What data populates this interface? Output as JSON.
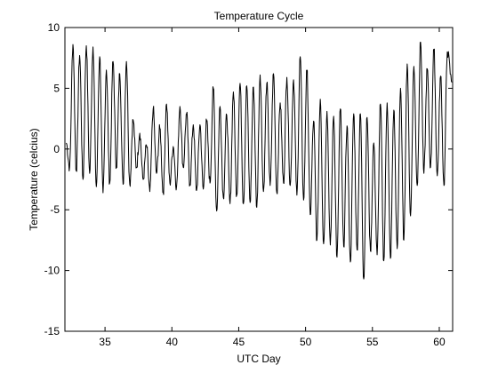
{
  "chart_data": {
    "type": "line",
    "title": "Temperature Cycle",
    "xlabel": "UTC Day",
    "ylabel": "Temperature (celcius)",
    "xlim": [
      32,
      61
    ],
    "ylim": [
      -15,
      10
    ],
    "xticks": [
      35,
      40,
      45,
      50,
      55,
      60
    ],
    "yticks": [
      10,
      5,
      0,
      -5,
      -10,
      -15
    ],
    "grid": false,
    "series": [
      {
        "color": "#000000",
        "cycle_peaks": [
          [
            32.1,
            0.5
          ],
          [
            32.6,
            8.6
          ],
          [
            33.1,
            7.7
          ],
          [
            33.6,
            8.5
          ],
          [
            34.1,
            8.4
          ],
          [
            34.6,
            7.6
          ],
          [
            35.1,
            6.5
          ],
          [
            35.6,
            7.2
          ],
          [
            36.1,
            6.2
          ],
          [
            36.6,
            7.2
          ],
          [
            37.1,
            2.4
          ],
          [
            37.6,
            1.3
          ],
          [
            38.1,
            0.3
          ],
          [
            38.6,
            3.3
          ],
          [
            39.1,
            1.7
          ],
          [
            39.6,
            3.7
          ],
          [
            40.1,
            0.2
          ],
          [
            40.6,
            3.5
          ],
          [
            41.1,
            2.9
          ],
          [
            41.6,
            2.0
          ],
          [
            42.1,
            2.0
          ],
          [
            42.6,
            2.3
          ],
          [
            43.1,
            5.0
          ],
          [
            43.6,
            3.5
          ],
          [
            44.1,
            2.8
          ],
          [
            44.6,
            4.7
          ],
          [
            45.1,
            5.4
          ],
          [
            45.6,
            5.2
          ],
          [
            46.1,
            5.1
          ],
          [
            46.6,
            6.1
          ],
          [
            47.1,
            5.4
          ],
          [
            47.6,
            6.2
          ],
          [
            48.1,
            3.8
          ],
          [
            48.6,
            5.9
          ],
          [
            49.1,
            5.7
          ],
          [
            49.6,
            7.6
          ],
          [
            50.1,
            6.5
          ],
          [
            50.6,
            2.3
          ],
          [
            51.1,
            4.1
          ],
          [
            51.6,
            3.1
          ],
          [
            52.1,
            2.7
          ],
          [
            52.6,
            3.3
          ],
          [
            53.1,
            1.9
          ],
          [
            53.6,
            2.9
          ],
          [
            54.1,
            2.9
          ],
          [
            54.6,
            2.6
          ],
          [
            55.1,
            0.5
          ],
          [
            55.6,
            3.7
          ],
          [
            56.1,
            3.8
          ],
          [
            56.6,
            3.2
          ],
          [
            57.1,
            5.0
          ],
          [
            57.6,
            7.0
          ],
          [
            58.1,
            6.8
          ],
          [
            58.6,
            8.8
          ],
          [
            59.1,
            6.6
          ],
          [
            59.6,
            8.2
          ],
          [
            60.1,
            6.0
          ],
          [
            60.6,
            8.0
          ]
        ],
        "cycle_troughs": [
          [
            32.35,
            -1.5
          ],
          [
            32.85,
            -1.8
          ],
          [
            33.35,
            -2.5
          ],
          [
            33.85,
            -2.0
          ],
          [
            34.35,
            -3.1
          ],
          [
            34.85,
            -3.6
          ],
          [
            35.35,
            -2.8
          ],
          [
            35.85,
            -1.5
          ],
          [
            36.35,
            -2.9
          ],
          [
            36.85,
            -2.9
          ],
          [
            37.35,
            -1.5
          ],
          [
            37.85,
            -2.5
          ],
          [
            38.35,
            -3.5
          ],
          [
            38.85,
            -2.0
          ],
          [
            39.35,
            -3.6
          ],
          [
            39.85,
            -2.8
          ],
          [
            40.35,
            -3.1
          ],
          [
            40.85,
            -1.5
          ],
          [
            41.35,
            -2.9
          ],
          [
            41.85,
            -3.4
          ],
          [
            42.35,
            -3.3
          ],
          [
            42.85,
            -2.8
          ],
          [
            43.35,
            -5.1
          ],
          [
            43.85,
            -4.0
          ],
          [
            44.35,
            -4.5
          ],
          [
            44.85,
            -3.8
          ],
          [
            45.35,
            -4.5
          ],
          [
            45.85,
            -4.4
          ],
          [
            46.35,
            -4.8
          ],
          [
            46.85,
            -3.5
          ],
          [
            47.35,
            -3.0
          ],
          [
            47.85,
            -3.6
          ],
          [
            48.35,
            -2.8
          ],
          [
            48.85,
            -3.0
          ],
          [
            49.35,
            -3.8
          ],
          [
            49.85,
            -4.2
          ],
          [
            50.35,
            -5.4
          ],
          [
            50.85,
            -7.5
          ],
          [
            51.35,
            -7.8
          ],
          [
            51.85,
            -7.9
          ],
          [
            52.35,
            -8.9
          ],
          [
            52.85,
            -8.0
          ],
          [
            53.35,
            -9.3
          ],
          [
            53.85,
            -8.3
          ],
          [
            54.35,
            -10.7
          ],
          [
            54.85,
            -8.4
          ],
          [
            55.35,
            -8.7
          ],
          [
            55.85,
            -9.2
          ],
          [
            56.35,
            -9.0
          ],
          [
            56.85,
            -8.2
          ],
          [
            57.35,
            -7.5
          ],
          [
            57.85,
            -5.5
          ],
          [
            58.35,
            -3.0
          ],
          [
            58.85,
            -2.0
          ],
          [
            59.35,
            -1.5
          ],
          [
            59.85,
            -2.2
          ],
          [
            60.35,
            -3.0
          ],
          [
            60.95,
            5.5
          ]
        ]
      }
    ]
  }
}
